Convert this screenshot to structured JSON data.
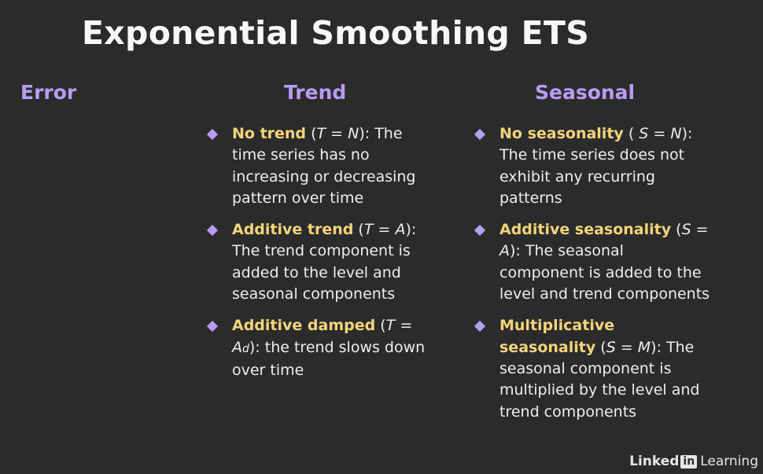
{
  "title": "Exponential Smoothing ETS",
  "columns": {
    "error": "Error",
    "trend": "Trend",
    "seasonal": "Seasonal"
  },
  "trend_items": [
    {
      "term": "No trend",
      "notation_pre": " (",
      "notation_var": "T",
      "notation_mid": " = ",
      "notation_val": "N",
      "notation_post": "): ",
      "description": "The time series has no increasing or decreasing pattern over time"
    },
    {
      "term": "Additive trend",
      "notation_pre": " (",
      "notation_var": "T",
      "notation_mid": " = ",
      "notation_val": "A",
      "notation_post": "): ",
      "description": "The trend component is added to the level and seasonal components"
    },
    {
      "term": "Additive damped",
      "notation_pre": " (",
      "notation_var": "T",
      "notation_mid": " = ",
      "notation_val": "A",
      "notation_sub": "d",
      "notation_post": "): ",
      "description": "the trend slows down over time"
    }
  ],
  "seasonal_items": [
    {
      "term": "No seasonality",
      "notation_pre": " ( ",
      "notation_var": "S",
      "notation_mid": " = ",
      "notation_val": "N",
      "notation_post": "): ",
      "description": "The time series does not exhibit any recurring patterns"
    },
    {
      "term": "Additive seasonality",
      "notation_pre": " (",
      "notation_var": "S",
      "notation_mid": " = ",
      "notation_val": "A",
      "notation_post": "): ",
      "description": "The seasonal component is added to the level and trend components"
    },
    {
      "term": "Multiplicative seasonality",
      "notation_pre": " (",
      "notation_var": "S",
      "notation_mid": " = ",
      "notation_val": "M",
      "notation_post": "): ",
      "description": "The seasonal component is multiplied by the level and trend components"
    }
  ],
  "logo": {
    "linked": "Linked",
    "in": "in",
    "learning": "Learning"
  },
  "colors": {
    "background": "#2b2b2c",
    "heading": "#b99cf3",
    "term": "#f3d57a",
    "text": "#eeeeee"
  }
}
